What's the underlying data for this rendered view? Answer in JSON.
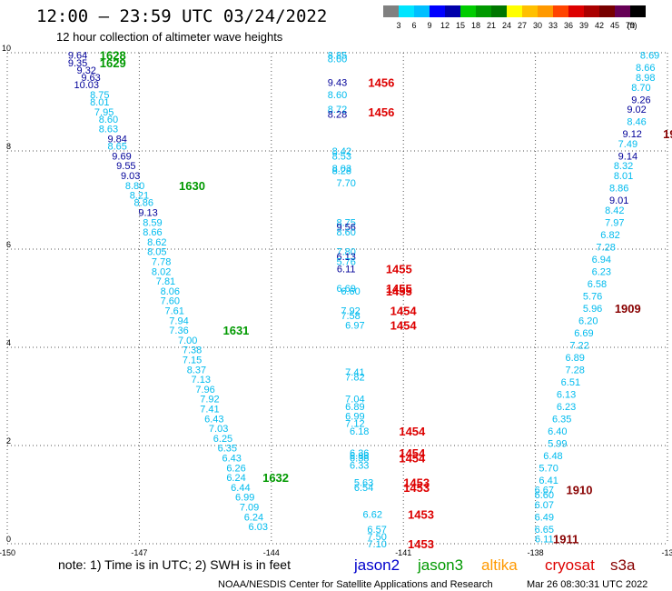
{
  "chart_data": {
    "type": "scatter",
    "title": "12:00 — 23:59 UTC 03/24/2022",
    "subtitle": "12 hour collection of altimeter wave heights",
    "note": "note: 1) Time is in UTC; 2) SWH is in feet",
    "credit": "NOAA/NESDIS Center for Satellite Applications and Research",
    "generated": "Mar 26 08:30:31 UTC 2022",
    "xlim": [
      -150,
      -135
    ],
    "ylim": [
      0,
      10
    ],
    "x_ticks": [
      "-150",
      "-147",
      "-144",
      "-141",
      "-138",
      "-13"
    ],
    "y_ticks": [
      "0",
      "2",
      "4",
      "6",
      "8",
      "10"
    ],
    "grid": true,
    "colorbar": {
      "labels": [
        "3",
        "6",
        "9",
        "12",
        "15",
        "18",
        "21",
        "24",
        "27",
        "30",
        "33",
        "36",
        "39",
        "42",
        "45",
        "70",
        "(ft)"
      ],
      "colors": [
        "#808080",
        "#00e5ff",
        "#00bfff",
        "#0000ff",
        "#0000aa",
        "#00cc00",
        "#009900",
        "#007700",
        "#ffff00",
        "#ffc000",
        "#ff9900",
        "#ff4400",
        "#dd0000",
        "#aa0000",
        "#770000",
        "#660055",
        "#000000"
      ]
    },
    "series": [
      {
        "name": "jason2",
        "color": "#0000cc"
      },
      {
        "name": "jason3",
        "color": "#009900"
      },
      {
        "name": "altika",
        "color": "#ff9900"
      },
      {
        "name": "cryosat",
        "color": "#dd0000"
      },
      {
        "name": "s3a",
        "color": "#880000"
      }
    ],
    "value_colors": {
      "light": "#00bbee",
      "dark": "#000099"
    },
    "tracks": [
      {
        "labels": [
          [
            "9.64",
            "d",
            -148.4,
            9.95
          ],
          [
            "9.35",
            "d",
            -148.4,
            9.8
          ],
          [
            "9.32",
            "d",
            -148.2,
            9.65
          ],
          [
            "9.63",
            "d",
            -148.1,
            9.5
          ],
          [
            "10.03",
            "d",
            -148.2,
            9.35
          ],
          [
            "8.75",
            "l",
            -147.9,
            9.15
          ],
          [
            "8.01",
            "l",
            -147.9,
            9.0
          ],
          [
            "7.95",
            "l",
            -147.8,
            8.8
          ],
          [
            "8.60",
            "l",
            -147.7,
            8.65
          ],
          [
            "8.63",
            "l",
            -147.7,
            8.45
          ],
          [
            "9.84",
            "d",
            -147.5,
            8.25
          ],
          [
            "8.65",
            "l",
            -147.5,
            8.1
          ],
          [
            "9.69",
            "d",
            -147.4,
            7.9
          ],
          [
            "9.55",
            "d",
            -147.3,
            7.7
          ],
          [
            "9.03",
            "d",
            -147.2,
            7.5
          ],
          [
            "8.80",
            "l",
            -147.1,
            7.3
          ],
          [
            "8.21",
            "l",
            -147.0,
            7.1
          ],
          [
            "8.86",
            "l",
            -146.9,
            6.95
          ],
          [
            "9.13",
            "d",
            -146.8,
            6.75
          ],
          [
            "8.59",
            "l",
            -146.7,
            6.55
          ],
          [
            "8.66",
            "l",
            -146.7,
            6.35
          ],
          [
            "8.62",
            "l",
            -146.6,
            6.15
          ],
          [
            "8.05",
            "l",
            -146.6,
            5.95
          ],
          [
            "7.78",
            "l",
            -146.5,
            5.75
          ],
          [
            "8.02",
            "l",
            -146.5,
            5.55
          ],
          [
            "7.81",
            "l",
            -146.4,
            5.35
          ],
          [
            "8.06",
            "l",
            -146.3,
            5.15
          ],
          [
            "7.60",
            "l",
            -146.3,
            4.95
          ],
          [
            "7.61",
            "l",
            -146.2,
            4.75
          ],
          [
            "7.94",
            "l",
            -146.1,
            4.55
          ],
          [
            "7.36",
            "l",
            -146.1,
            4.35
          ],
          [
            "7.00",
            "l",
            -145.9,
            4.15
          ],
          [
            "7.38",
            "l",
            -145.8,
            3.95
          ],
          [
            "7.15",
            "l",
            -145.8,
            3.75
          ],
          [
            "8.37",
            "l",
            -145.7,
            3.55
          ],
          [
            "7.13",
            "l",
            -145.6,
            3.35
          ],
          [
            "7.96",
            "l",
            -145.5,
            3.15
          ],
          [
            "7.92",
            "l",
            -145.4,
            2.95
          ],
          [
            "7.41",
            "l",
            -145.4,
            2.75
          ],
          [
            "6.43",
            "l",
            -145.3,
            2.55
          ],
          [
            "7.03",
            "l",
            -145.2,
            2.35
          ],
          [
            "6.25",
            "l",
            -145.1,
            2.15
          ],
          [
            "6.35",
            "l",
            -145.0,
            1.95
          ],
          [
            "6.43",
            "l",
            -144.9,
            1.75
          ],
          [
            "6.26",
            "l",
            -144.8,
            1.55
          ],
          [
            "6.24",
            "l",
            -144.8,
            1.35
          ],
          [
            "6.44",
            "l",
            -144.7,
            1.15
          ],
          [
            "6.99",
            "l",
            -144.6,
            0.95
          ],
          [
            "7.09",
            "l",
            -144.5,
            0.75
          ],
          [
            "6.24",
            "l",
            -144.4,
            0.55
          ],
          [
            "6.03",
            "l",
            -144.3,
            0.35
          ]
        ]
      },
      {
        "labels": [
          [
            "8.85",
            "l",
            -142.5,
            9.95
          ],
          [
            "8.60",
            "l",
            -142.5,
            9.88
          ],
          [
            "9.43",
            "d",
            -142.5,
            9.4
          ],
          [
            "8.60",
            "l",
            -142.5,
            9.15
          ],
          [
            "8.72",
            "l",
            -142.5,
            8.85
          ],
          [
            "8.28",
            "d",
            -142.5,
            8.75
          ],
          [
            "8.42",
            "l",
            -142.4,
            8.0
          ],
          [
            "8.53",
            "l",
            -142.4,
            7.9
          ],
          [
            "8.03",
            "l",
            -142.4,
            7.65
          ],
          [
            "8.28",
            "l",
            -142.4,
            7.6
          ],
          [
            "7.70",
            "l",
            -142.3,
            7.35
          ],
          [
            "8.75",
            "l",
            -142.3,
            6.55
          ],
          [
            "9.56",
            "d",
            -142.3,
            6.45
          ],
          [
            "8.60",
            "l",
            -142.3,
            6.35
          ],
          [
            "7.80",
            "l",
            -142.3,
            5.95
          ],
          [
            "6.13",
            "d",
            -142.3,
            5.85
          ],
          [
            "5.76",
            "l",
            -142.3,
            5.75
          ],
          [
            "6.11",
            "d",
            -142.3,
            5.6
          ],
          [
            "6.69",
            "l",
            -142.3,
            5.2
          ],
          [
            "6.60",
            "l",
            -142.2,
            5.15
          ],
          [
            "7.92",
            "l",
            -142.2,
            4.75
          ],
          [
            "7.58",
            "l",
            -142.2,
            4.65
          ],
          [
            "6.97",
            "l",
            -142.1,
            4.45
          ],
          [
            "7.41",
            "l",
            -142.1,
            3.5
          ],
          [
            "7.82",
            "l",
            -142.1,
            3.4
          ],
          [
            "7.04",
            "l",
            -142.1,
            2.95
          ],
          [
            "6.89",
            "l",
            -142.1,
            2.8
          ],
          [
            "6.99",
            "l",
            -142.1,
            2.6
          ],
          [
            "7.12",
            "l",
            -142.1,
            2.45
          ],
          [
            "6.18",
            "l",
            -142.0,
            2.3
          ],
          [
            "6.36",
            "l",
            -142.0,
            1.85
          ],
          [
            "6.88",
            "l",
            -142.0,
            1.8
          ],
          [
            "6.38",
            "l",
            -142.0,
            1.75
          ],
          [
            "6.33",
            "l",
            -142.0,
            1.6
          ],
          [
            "5.63",
            "l",
            -141.9,
            1.25
          ],
          [
            "6.54",
            "l",
            -141.9,
            1.15
          ],
          [
            "6.62",
            "l",
            -141.7,
            0.6
          ],
          [
            "6.57",
            "l",
            -141.6,
            0.3
          ],
          [
            "7.50",
            "l",
            -141.6,
            0.15
          ],
          [
            "7.10",
            "l",
            -141.6,
            0.0
          ]
        ]
      },
      {
        "labels": [
          [
            "8.69",
            "l",
            -135.4,
            9.95
          ],
          [
            "8.66",
            "l",
            -135.5,
            9.7
          ],
          [
            "8.98",
            "l",
            -135.5,
            9.5
          ],
          [
            "8.70",
            "l",
            -135.6,
            9.3
          ],
          [
            "9.26",
            "d",
            -135.6,
            9.05
          ],
          [
            "9.02",
            "d",
            -135.7,
            8.85
          ],
          [
            "8.46",
            "l",
            -135.7,
            8.6
          ],
          [
            "9.12",
            "d",
            -135.8,
            8.35
          ],
          [
            "7.49",
            "l",
            -135.9,
            8.15
          ],
          [
            "9.14",
            "d",
            -135.9,
            7.9
          ],
          [
            "8.32",
            "l",
            -136.0,
            7.7
          ],
          [
            "8.01",
            "l",
            -136.0,
            7.5
          ],
          [
            "8.86",
            "l",
            -136.1,
            7.25
          ],
          [
            "9.01",
            "d",
            -136.1,
            7.0
          ],
          [
            "8.42",
            "l",
            -136.2,
            6.8
          ],
          [
            "7.97",
            "l",
            -136.2,
            6.55
          ],
          [
            "6.82",
            "l",
            -136.3,
            6.3
          ],
          [
            "7.28",
            "l",
            -136.4,
            6.05
          ],
          [
            "6.94",
            "l",
            -136.5,
            5.8
          ],
          [
            "6.23",
            "l",
            -136.5,
            5.55
          ],
          [
            "6.58",
            "l",
            -136.6,
            5.3
          ],
          [
            "5.76",
            "l",
            -136.7,
            5.05
          ],
          [
            "5.96",
            "l",
            -136.7,
            4.8
          ],
          [
            "6.20",
            "l",
            -136.8,
            4.55
          ],
          [
            "6.69",
            "l",
            -136.9,
            4.3
          ],
          [
            "7.22",
            "l",
            -137.0,
            4.05
          ],
          [
            "6.89",
            "l",
            -137.1,
            3.8
          ],
          [
            "7.28",
            "l",
            -137.1,
            3.55
          ],
          [
            "6.51",
            "l",
            -137.2,
            3.3
          ],
          [
            "6.13",
            "l",
            -137.3,
            3.05
          ],
          [
            "6.23",
            "l",
            -137.3,
            2.8
          ],
          [
            "6.35",
            "l",
            -137.4,
            2.55
          ],
          [
            "6.40",
            "l",
            -137.5,
            2.3
          ],
          [
            "5.99",
            "l",
            -137.5,
            2.05
          ],
          [
            "6.48",
            "l",
            -137.6,
            1.8
          ],
          [
            "5.70",
            "l",
            -137.7,
            1.55
          ],
          [
            "6.41",
            "l",
            -137.7,
            1.3
          ],
          [
            "6.67",
            "l",
            -137.8,
            1.1
          ],
          [
            "6.60",
            "l",
            -137.8,
            1.0
          ],
          [
            "6.07",
            "l",
            -137.8,
            0.8
          ],
          [
            "6.49",
            "l",
            -137.8,
            0.55
          ],
          [
            "6.65",
            "l",
            -137.8,
            0.3
          ],
          [
            "6.11",
            "l",
            -137.8,
            0.1
          ]
        ]
      }
    ],
    "time_labels": [
      {
        "text": "1628",
        "color": "#009900",
        "x": -147.9,
        "y": 9.95
      },
      {
        "text": "1629",
        "color": "#009900",
        "x": -147.9,
        "y": 9.8
      },
      {
        "text": "1630",
        "color": "#009900",
        "x": -146.1,
        "y": 7.3
      },
      {
        "text": "1631",
        "color": "#009900",
        "x": -145.1,
        "y": 4.35
      },
      {
        "text": "1632",
        "color": "#009900",
        "x": -144.2,
        "y": 1.35
      },
      {
        "text": "1456",
        "color": "#dd0000",
        "x": -141.8,
        "y": 9.4
      },
      {
        "text": "1456",
        "color": "#dd0000",
        "x": -141.8,
        "y": 8.8
      },
      {
        "text": "1455",
        "color": "#dd0000",
        "x": -141.4,
        "y": 5.6
      },
      {
        "text": "1455",
        "color": "#dd0000",
        "x": -141.4,
        "y": 5.2
      },
      {
        "text": "1455",
        "color": "#dd0000",
        "x": -141.4,
        "y": 5.15
      },
      {
        "text": "1454",
        "color": "#dd0000",
        "x": -141.3,
        "y": 4.75
      },
      {
        "text": "1454",
        "color": "#dd0000",
        "x": -141.3,
        "y": 4.45
      },
      {
        "text": "1454",
        "color": "#dd0000",
        "x": -141.1,
        "y": 2.3
      },
      {
        "text": "1454",
        "color": "#dd0000",
        "x": -141.1,
        "y": 1.85
      },
      {
        "text": "1454",
        "color": "#dd0000",
        "x": -141.1,
        "y": 1.75
      },
      {
        "text": "1453",
        "color": "#dd0000",
        "x": -141.0,
        "y": 1.25
      },
      {
        "text": "1453",
        "color": "#dd0000",
        "x": -141.0,
        "y": 1.15
      },
      {
        "text": "1453",
        "color": "#dd0000",
        "x": -140.9,
        "y": 0.6
      },
      {
        "text": "1453",
        "color": "#dd0000",
        "x": -140.9,
        "y": 0.0
      },
      {
        "text": "19",
        "color": "#880000",
        "x": -135.1,
        "y": 8.35
      },
      {
        "text": "1909",
        "color": "#880000",
        "x": -136.2,
        "y": 4.8
      },
      {
        "text": "1910",
        "color": "#880000",
        "x": -137.3,
        "y": 1.1
      },
      {
        "text": "1911",
        "color": "#880000",
        "x": -137.6,
        "y": 0.1
      }
    ]
  }
}
